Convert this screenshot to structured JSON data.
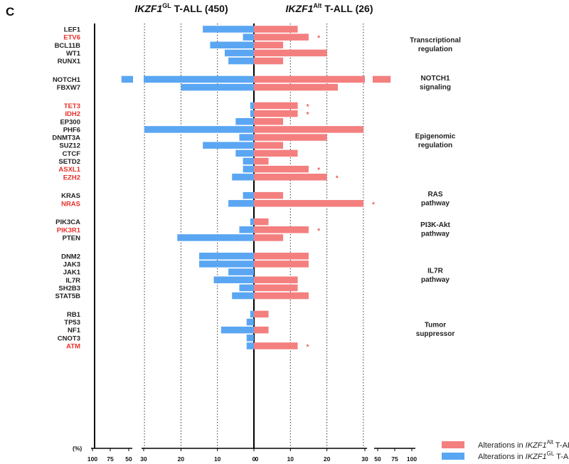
{
  "panel_label": "C",
  "headers": {
    "left": {
      "pre": "IKZF1",
      "sup": "GL",
      "post": " T-ALL (450)"
    },
    "right": {
      "pre": "IKZF1",
      "sup": "Alt",
      "post": " T-ALL (26)"
    }
  },
  "legend": [
    {
      "pre": "Alterations in ",
      "italic": "IKZF1",
      "sup": "Alt",
      "post": " T-ALLs",
      "color": "#f47f7f"
    },
    {
      "pre": "Alterations in ",
      "italic": "IKZF1",
      "sup": "GL",
      "post": " T-ALLs",
      "color": "#5aa6f2"
    }
  ],
  "colors": {
    "gl": "#5aa6f2",
    "alt": "#f47f7f",
    "highlight": "#e8302a",
    "gene": "#222222"
  },
  "chart_data": {
    "type": "bar",
    "orientation": "horizontal",
    "axis": {
      "unit_label": "(%)",
      "left_ticks": [
        "100",
        "75",
        "50",
        "30",
        "20",
        "10",
        "0"
      ],
      "right_ticks": [
        "0",
        "10",
        "20",
        "30",
        "50",
        "75",
        "100"
      ],
      "break_at": 30
    },
    "series": [
      {
        "name": "Alterations in IKZF1Alt T-ALLs",
        "key": "alt"
      },
      {
        "name": "Alterations in IKZF1GL T-ALLs",
        "key": "gl"
      }
    ],
    "groups": [
      {
        "label_lines": [
          "Transcriptional",
          "regulation"
        ],
        "genes": [
          {
            "gene": "LEF1",
            "gl": 14,
            "alt": 12,
            "highlight": false,
            "star": false
          },
          {
            "gene": "ETV6",
            "gl": 3,
            "alt": 15,
            "highlight": true,
            "star": true
          },
          {
            "gene": "BCL11B",
            "gl": 12,
            "alt": 8,
            "highlight": false,
            "star": false
          },
          {
            "gene": "WT1",
            "gl": 8,
            "alt": 20,
            "highlight": false,
            "star": false
          },
          {
            "gene": "RUNX1",
            "gl": 7,
            "alt": 8,
            "highlight": false,
            "star": false
          }
        ]
      },
      {
        "label_lines": [
          "NOTCH1",
          "signaling"
        ],
        "genes": [
          {
            "gene": "NOTCH1",
            "gl": 60,
            "alt": 69,
            "highlight": false,
            "star": false
          },
          {
            "gene": "FBXW7",
            "gl": 20,
            "alt": 23,
            "highlight": false,
            "star": false
          }
        ]
      },
      {
        "label_lines": [
          "Epigenomic",
          "regulation"
        ],
        "genes": [
          {
            "gene": "TET3",
            "gl": 1,
            "alt": 12,
            "highlight": true,
            "star": true
          },
          {
            "gene": "IDH2",
            "gl": 1,
            "alt": 12,
            "highlight": true,
            "star": true
          },
          {
            "gene": "EP300",
            "gl": 5,
            "alt": 8,
            "highlight": false,
            "star": false
          },
          {
            "gene": "PHF6",
            "gl": 30,
            "alt": 30,
            "highlight": false,
            "star": false
          },
          {
            "gene": "DNMT3A",
            "gl": 4,
            "alt": 20,
            "highlight": false,
            "star": false
          },
          {
            "gene": "SUZ12",
            "gl": 14,
            "alt": 8,
            "highlight": false,
            "star": false
          },
          {
            "gene": "CTCF",
            "gl": 5,
            "alt": 12,
            "highlight": false,
            "star": false
          },
          {
            "gene": "SETD2",
            "gl": 3,
            "alt": 4,
            "highlight": false,
            "star": false
          },
          {
            "gene": "ASXL1",
            "gl": 3,
            "alt": 15,
            "highlight": true,
            "star": true
          },
          {
            "gene": "EZH2",
            "gl": 6,
            "alt": 20,
            "highlight": true,
            "star": true
          }
        ]
      },
      {
        "label_lines": [
          "RAS",
          "pathway"
        ],
        "genes": [
          {
            "gene": "KRAS",
            "gl": 3,
            "alt": 8,
            "highlight": false,
            "star": false
          },
          {
            "gene": "NRAS",
            "gl": 7,
            "alt": 30,
            "highlight": true,
            "star": true
          }
        ]
      },
      {
        "label_lines": [
          "PI3K-Akt",
          "pathway"
        ],
        "genes": [
          {
            "gene": "PIK3CA",
            "gl": 1,
            "alt": 4,
            "highlight": false,
            "star": false
          },
          {
            "gene": "PIK3R1",
            "gl": 4,
            "alt": 15,
            "highlight": true,
            "star": true
          },
          {
            "gene": "PTEN",
            "gl": 21,
            "alt": 8,
            "highlight": false,
            "star": false
          }
        ]
      },
      {
        "label_lines": [
          "IL7R",
          "pathway"
        ],
        "genes": [
          {
            "gene": "DNM2",
            "gl": 15,
            "alt": 15,
            "highlight": false,
            "star": false
          },
          {
            "gene": "JAK3",
            "gl": 15,
            "alt": 15,
            "highlight": false,
            "star": false
          },
          {
            "gene": "JAK1",
            "gl": 7,
            "alt": 0,
            "highlight": false,
            "star": false
          },
          {
            "gene": "IL7R",
            "gl": 11,
            "alt": 12,
            "highlight": false,
            "star": false
          },
          {
            "gene": "SH2B3",
            "gl": 4,
            "alt": 12,
            "highlight": false,
            "star": false
          },
          {
            "gene": "STAT5B",
            "gl": 6,
            "alt": 15,
            "highlight": false,
            "star": false
          }
        ]
      },
      {
        "label_lines": [
          "Tumor",
          "suppressor"
        ],
        "genes": [
          {
            "gene": "RB1",
            "gl": 1,
            "alt": 4,
            "highlight": false,
            "star": false
          },
          {
            "gene": "TP53",
            "gl": 2,
            "alt": 0,
            "highlight": false,
            "star": false
          },
          {
            "gene": "NF1",
            "gl": 9,
            "alt": 4,
            "highlight": false,
            "star": false
          },
          {
            "gene": "CNOT3",
            "gl": 2,
            "alt": 0,
            "highlight": false,
            "star": false
          },
          {
            "gene": "ATM",
            "gl": 2,
            "alt": 12,
            "highlight": true,
            "star": true
          }
        ]
      }
    ]
  }
}
